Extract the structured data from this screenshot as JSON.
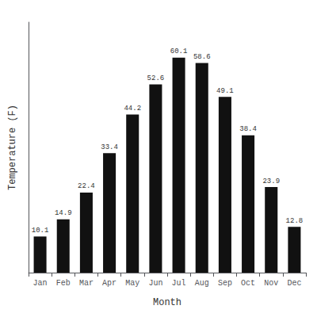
{
  "chart_data": {
    "type": "bar",
    "categories": [
      "Jan",
      "Feb",
      "Mar",
      "Apr",
      "May",
      "Jun",
      "Jul",
      "Aug",
      "Sep",
      "Oct",
      "Nov",
      "Dec"
    ],
    "values": [
      10.1,
      14.9,
      22.4,
      33.4,
      44.2,
      52.6,
      60.1,
      58.6,
      49.1,
      38.4,
      23.9,
      12.8
    ],
    "color": "#111111",
    "xlabel": "Month",
    "ylabel": "Temperature (F)",
    "ylim": [
      0,
      70
    ],
    "yticks": [],
    "grid": false,
    "data_labels": true,
    "tick_labels": "x"
  }
}
